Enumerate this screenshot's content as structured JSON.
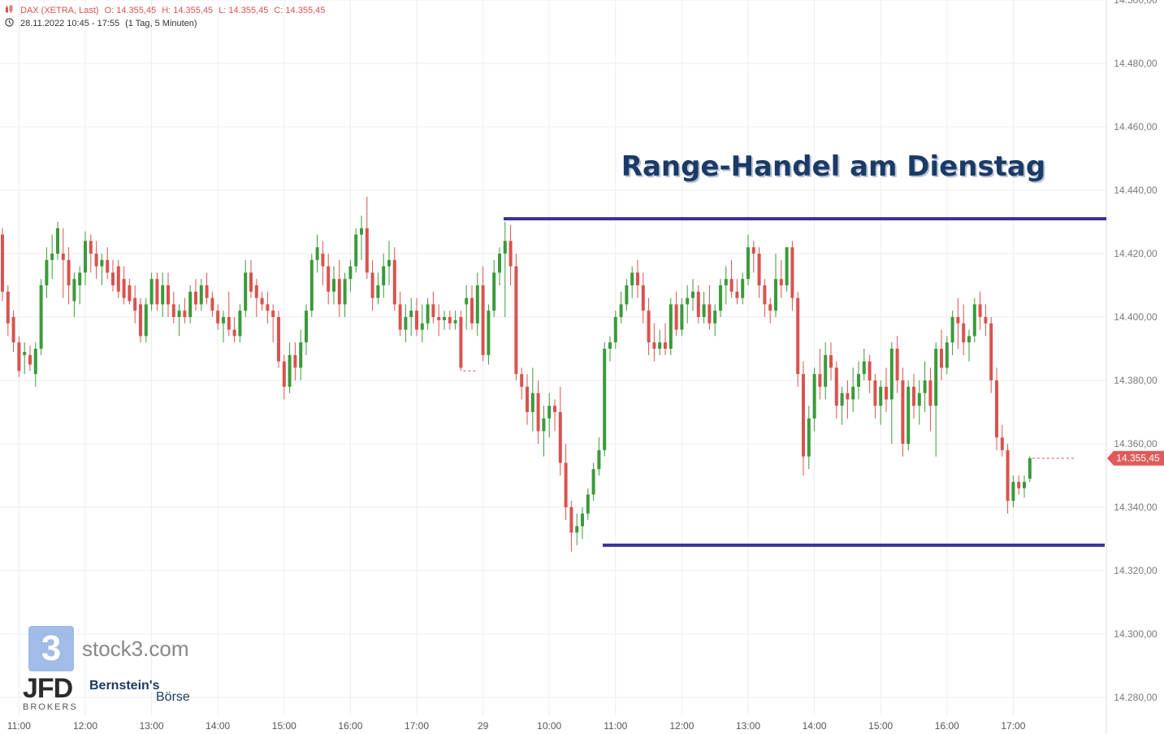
{
  "header": {
    "instrument": "DAX (XETRA, Last)",
    "open": "O: 14.355,45",
    "high": "H: 14.355,45",
    "low": "L: 14.355,45",
    "close": "C: 14.355,45",
    "range": "28.11.2022 10:45 - 17:55",
    "interval": "(1 Tag, 5 Minuten)",
    "chart_icon": "candlestick-icon",
    "clock_icon": "clock-icon"
  },
  "annotation": {
    "title": "Range-Handel am Dienstag",
    "upper_line_value": 14431,
    "lower_line_value": 14328
  },
  "watermarks": {
    "logo_glyph": "3",
    "site": "stock3.com",
    "jfd": "JFD",
    "jfd_sub": "BROKERS",
    "bernstein": "Bernstein's",
    "boerse": "Börse"
  },
  "colors": {
    "up": "#3b9a3b",
    "down": "#d9534f",
    "range_line": "#3a2f94",
    "title": "#1b3a66",
    "grid": "#ececec",
    "price_tag": "#e05a5a"
  },
  "chart_data": {
    "type": "candlestick",
    "title": "",
    "ylim": [
      14275,
      14500
    ],
    "y_ticks": [
      "14.280,00",
      "14.300,00",
      "14.320,00",
      "14.340,00",
      "14.360,00",
      "14.380,00",
      "14.400,00",
      "14.420,00",
      "14.440,00",
      "14.460,00",
      "14.480,00",
      "14.500,00"
    ],
    "y_tick_values": [
      14280,
      14300,
      14320,
      14340,
      14360,
      14380,
      14400,
      14420,
      14440,
      14460,
      14480,
      14500
    ],
    "x_ticks": [
      "11:00",
      "12:00",
      "13:00",
      "14:00",
      "15:00",
      "16:00",
      "17:00",
      "29",
      "10:00",
      "11:00",
      "12:00",
      "13:00",
      "14:00",
      "15:00",
      "16:00",
      "17:00"
    ],
    "x_tick_index": [
      3,
      15,
      27,
      39,
      51,
      63,
      75,
      87,
      99,
      111,
      123,
      135,
      147,
      159,
      171,
      183
    ],
    "last_price_label": "14.355,45",
    "last_price": 14355.45,
    "day1_last_close": 14383,
    "candles": [
      [
        14426,
        14428,
        14405,
        14408
      ],
      [
        14408,
        14410,
        14394,
        14398
      ],
      [
        14400,
        14402,
        14389,
        14392
      ],
      [
        14392,
        14394,
        14381,
        14383
      ],
      [
        14388,
        14392,
        14382,
        14389
      ],
      [
        14388,
        14391,
        14383,
        14385
      ],
      [
        14382,
        14392,
        14378,
        14390
      ],
      [
        14390,
        14412,
        14388,
        14410
      ],
      [
        14410,
        14422,
        14406,
        14418
      ],
      [
        14418,
        14426,
        14412,
        14420
      ],
      [
        14420,
        14430,
        14418,
        14428
      ],
      [
        14420,
        14428,
        14406,
        14418
      ],
      [
        14418,
        14422,
        14404,
        14410
      ],
      [
        14405,
        14414,
        14400,
        14412
      ],
      [
        14410,
        14416,
        14404,
        14414
      ],
      [
        14414,
        14427,
        14410,
        14424
      ],
      [
        14424,
        14426,
        14414,
        14420
      ],
      [
        14420,
        14424,
        14412,
        14416
      ],
      [
        14416,
        14420,
        14410,
        14418
      ],
      [
        14418,
        14422,
        14412,
        14414
      ],
      [
        14414,
        14418,
        14408,
        14410
      ],
      [
        14416,
        14418,
        14406,
        14408
      ],
      [
        14412,
        14416,
        14404,
        14406
      ],
      [
        14410,
        14412,
        14404,
        14405
      ],
      [
        14406,
        14410,
        14398,
        14402
      ],
      [
        14404,
        14406,
        14392,
        14394
      ],
      [
        14394,
        14406,
        14392,
        14404
      ],
      [
        14404,
        14414,
        14402,
        14412
      ],
      [
        14412,
        14414,
        14402,
        14404
      ],
      [
        14404,
        14414,
        14400,
        14410
      ],
      [
        14410,
        14414,
        14400,
        14404
      ],
      [
        14404,
        14408,
        14398,
        14400
      ],
      [
        14400,
        14404,
        14394,
        14402
      ],
      [
        14402,
        14406,
        14398,
        14400
      ],
      [
        14400,
        14410,
        14398,
        14408
      ],
      [
        14408,
        14412,
        14402,
        14404
      ],
      [
        14404,
        14412,
        14402,
        14410
      ],
      [
        14410,
        14414,
        14404,
        14406
      ],
      [
        14406,
        14408,
        14400,
        14402
      ],
      [
        14402,
        14404,
        14396,
        14398
      ],
      [
        14398,
        14402,
        14392,
        14400
      ],
      [
        14400,
        14408,
        14394,
        14396
      ],
      [
        14396,
        14400,
        14392,
        14394
      ],
      [
        14394,
        14404,
        14392,
        14402
      ],
      [
        14402,
        14418,
        14400,
        14414
      ],
      [
        14414,
        14418,
        14406,
        14408
      ],
      [
        14410,
        14412,
        14400,
        14406
      ],
      [
        14406,
        14408,
        14402,
        14404
      ],
      [
        14404,
        14408,
        14398,
        14402
      ],
      [
        14402,
        14404,
        14392,
        14400
      ],
      [
        14400,
        14402,
        14384,
        14386
      ],
      [
        14386,
        14388,
        14374,
        14378
      ],
      [
        14378,
        14392,
        14376,
        14388
      ],
      [
        14388,
        14392,
        14380,
        14384
      ],
      [
        14384,
        14396,
        14380,
        14392
      ],
      [
        14392,
        14404,
        14388,
        14402
      ],
      [
        14402,
        14420,
        14400,
        14418
      ],
      [
        14418,
        14426,
        14414,
        14422
      ],
      [
        14420,
        14424,
        14410,
        14416
      ],
      [
        14416,
        14420,
        14404,
        14408
      ],
      [
        14408,
        14416,
        14404,
        14412
      ],
      [
        14412,
        14418,
        14400,
        14404
      ],
      [
        14404,
        14414,
        14400,
        14412
      ],
      [
        14412,
        14418,
        14408,
        14416
      ],
      [
        14416,
        14428,
        14414,
        14426
      ],
      [
        14426,
        14432,
        14418,
        14428
      ],
      [
        14428,
        14438,
        14412,
        14414
      ],
      [
        14414,
        14418,
        14402,
        14406
      ],
      [
        14406,
        14414,
        14404,
        14410
      ],
      [
        14410,
        14420,
        14406,
        14416
      ],
      [
        14416,
        14424,
        14410,
        14418
      ],
      [
        14418,
        14422,
        14402,
        14404
      ],
      [
        14404,
        14408,
        14394,
        14396
      ],
      [
        14396,
        14404,
        14392,
        14400
      ],
      [
        14400,
        14406,
        14394,
        14402
      ],
      [
        14402,
        14406,
        14394,
        14396
      ],
      [
        14396,
        14404,
        14392,
        14398
      ],
      [
        14398,
        14406,
        14396,
        14404
      ],
      [
        14404,
        14408,
        14398,
        14400
      ],
      [
        14400,
        14404,
        14394,
        14399
      ],
      [
        14399,
        14402,
        14396,
        14400
      ],
      [
        14400,
        14402,
        14396,
        14398
      ],
      [
        14398,
        14402,
        14396,
        14399
      ],
      [
        14400,
        14402,
        14383,
        14384
      ],
      [
        14404,
        14410,
        14396,
        14406
      ],
      [
        14406,
        14410,
        14396,
        14398
      ],
      [
        14398,
        14414,
        14394,
        14410
      ],
      [
        14410,
        14416,
        14386,
        14388
      ],
      [
        14388,
        14404,
        14385,
        14402
      ],
      [
        14402,
        14418,
        14400,
        14414
      ],
      [
        14414,
        14422,
        14410,
        14420
      ],
      [
        14420,
        14430,
        14400,
        14424
      ],
      [
        14424,
        14429,
        14410,
        14416
      ],
      [
        14416,
        14420,
        14380,
        14382
      ],
      [
        14382,
        14384,
        14374,
        14378
      ],
      [
        14378,
        14382,
        14366,
        14370
      ],
      [
        14370,
        14384,
        14364,
        14376
      ],
      [
        14376,
        14380,
        14360,
        14364
      ],
      [
        14364,
        14372,
        14356,
        14368
      ],
      [
        14368,
        14376,
        14362,
        14372
      ],
      [
        14372,
        14374,
        14364,
        14370
      ],
      [
        14370,
        14378,
        14350,
        14354
      ],
      [
        14354,
        14360,
        14336,
        14340
      ],
      [
        14340,
        14342,
        14326,
        14332
      ],
      [
        14332,
        14338,
        14328,
        14334
      ],
      [
        14334,
        14340,
        14330,
        14338
      ],
      [
        14338,
        14346,
        14336,
        14344
      ],
      [
        14344,
        14354,
        14342,
        14352
      ],
      [
        14352,
        14362,
        14350,
        14358
      ],
      [
        14358,
        14392,
        14356,
        14390
      ],
      [
        14390,
        14394,
        14386,
        14392
      ],
      [
        14392,
        14402,
        14390,
        14400
      ],
      [
        14400,
        14408,
        14398,
        14404
      ],
      [
        14404,
        14412,
        14402,
        14410
      ],
      [
        14410,
        14416,
        14406,
        14414
      ],
      [
        14414,
        14418,
        14406,
        14410
      ],
      [
        14410,
        14414,
        14398,
        14402
      ],
      [
        14402,
        14406,
        14388,
        14392
      ],
      [
        14392,
        14398,
        14386,
        14390
      ],
      [
        14390,
        14396,
        14388,
        14392
      ],
      [
        14392,
        14398,
        14388,
        14390
      ],
      [
        14390,
        14406,
        14388,
        14404
      ],
      [
        14404,
        14408,
        14394,
        14396
      ],
      [
        14396,
        14406,
        14394,
        14404
      ],
      [
        14404,
        14410,
        14398,
        14406
      ],
      [
        14406,
        14412,
        14402,
        14408
      ],
      [
        14408,
        14410,
        14398,
        14400
      ],
      [
        14400,
        14408,
        14398,
        14404
      ],
      [
        14404,
        14410,
        14396,
        14398
      ],
      [
        14398,
        14404,
        14394,
        14402
      ],
      [
        14402,
        14412,
        14400,
        14410
      ],
      [
        14410,
        14416,
        14404,
        14412
      ],
      [
        14412,
        14418,
        14406,
        14408
      ],
      [
        14408,
        14412,
        14404,
        14406
      ],
      [
        14406,
        14414,
        14404,
        14412
      ],
      [
        14412,
        14426,
        14410,
        14422
      ],
      [
        14422,
        14424,
        14414,
        14420
      ],
      [
        14420,
        14422,
        14406,
        14410
      ],
      [
        14410,
        14412,
        14400,
        14404
      ],
      [
        14404,
        14406,
        14398,
        14402
      ],
      [
        14402,
        14420,
        14400,
        14412
      ],
      [
        14412,
        14418,
        14406,
        14410
      ],
      [
        14410,
        14422,
        14408,
        14422
      ],
      [
        14422,
        14424,
        14402,
        14406
      ],
      [
        14406,
        14408,
        14378,
        14382
      ],
      [
        14382,
        14386,
        14350,
        14356
      ],
      [
        14356,
        14372,
        14352,
        14368
      ],
      [
        14368,
        14384,
        14364,
        14382
      ],
      [
        14382,
        14390,
        14374,
        14378
      ],
      [
        14378,
        14392,
        14374,
        14388
      ],
      [
        14388,
        14392,
        14380,
        14384
      ],
      [
        14384,
        14386,
        14368,
        14372
      ],
      [
        14372,
        14378,
        14366,
        14376
      ],
      [
        14376,
        14380,
        14368,
        14374
      ],
      [
        14374,
        14384,
        14370,
        14378
      ],
      [
        14378,
        14386,
        14374,
        14382
      ],
      [
        14382,
        14390,
        14380,
        14386
      ],
      [
        14386,
        14388,
        14376,
        14380
      ],
      [
        14380,
        14382,
        14368,
        14372
      ],
      [
        14372,
        14380,
        14366,
        14378
      ],
      [
        14378,
        14384,
        14370,
        14374
      ],
      [
        14374,
        14392,
        14360,
        14390
      ],
      [
        14390,
        14394,
        14376,
        14380
      ],
      [
        14380,
        14384,
        14356,
        14360
      ],
      [
        14360,
        14380,
        14358,
        14378
      ],
      [
        14378,
        14382,
        14368,
        14372
      ],
      [
        14372,
        14380,
        14366,
        14376
      ],
      [
        14376,
        14386,
        14370,
        14380
      ],
      [
        14380,
        14384,
        14364,
        14372
      ],
      [
        14372,
        14392,
        14356,
        14390
      ],
      [
        14390,
        14396,
        14380,
        14384
      ],
      [
        14384,
        14394,
        14382,
        14392
      ],
      [
        14392,
        14402,
        14388,
        14400
      ],
      [
        14400,
        14406,
        14390,
        14398
      ],
      [
        14398,
        14404,
        14388,
        14392
      ],
      [
        14392,
        14396,
        14386,
        14394
      ],
      [
        14394,
        14406,
        14392,
        14404
      ],
      [
        14404,
        14408,
        14396,
        14400
      ],
      [
        14400,
        14404,
        14394,
        14398
      ],
      [
        14398,
        14400,
        14376,
        14380
      ],
      [
        14380,
        14384,
        14358,
        14362
      ],
      [
        14362,
        14366,
        14356,
        14358
      ],
      [
        14358,
        14360,
        14338,
        14342
      ],
      [
        14342,
        14350,
        14340,
        14348
      ],
      [
        14348,
        14350,
        14344,
        14346
      ],
      [
        14346,
        14350,
        14343,
        14348
      ],
      [
        14349,
        14356,
        14348,
        14355.45
      ]
    ]
  }
}
